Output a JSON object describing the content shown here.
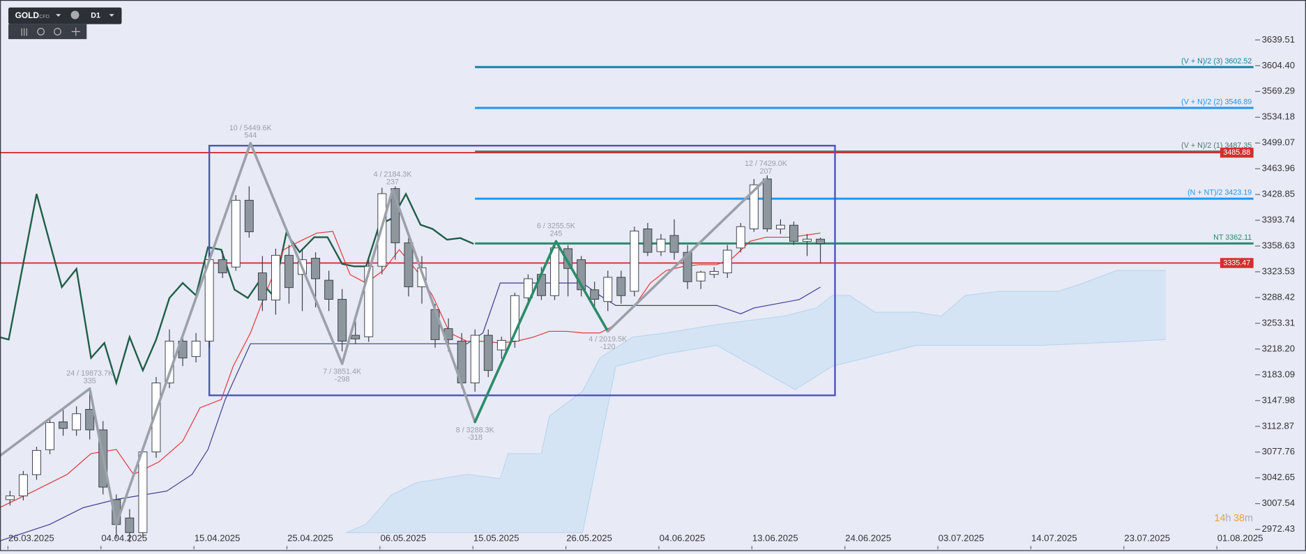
{
  "toolbar": {
    "symbol": "GOLD",
    "market": "CFD",
    "timeframe": "D1"
  },
  "timer": [
    "14",
    "h",
    "38",
    "m"
  ],
  "chart_data": {
    "type": "candlestick",
    "background": "#e8eaf6",
    "xlim": [
      -0.75,
      93.6
    ],
    "ylim": [
      2945.2,
      3693.96
    ],
    "xticks": [
      {
        "value": 1.6,
        "label": "26.03.2025"
      },
      {
        "value": 8.6,
        "label": "04.04.2025"
      },
      {
        "value": 15.6,
        "label": "15.04.2025"
      },
      {
        "value": 22.6,
        "label": "25.04.2025"
      },
      {
        "value": 29.6,
        "label": "06.05.2025"
      },
      {
        "value": 36.6,
        "label": "15.05.2025"
      },
      {
        "value": 43.6,
        "label": "26.05.2025"
      },
      {
        "value": 50.6,
        "label": "04.06.2025"
      },
      {
        "value": 57.6,
        "label": "13.06.2025"
      },
      {
        "value": 64.6,
        "label": "24.06.2025"
      },
      {
        "value": 71.6,
        "label": "03.07.2025"
      },
      {
        "value": 78.6,
        "label": "14.07.2025"
      },
      {
        "value": 85.6,
        "label": "23.07.2025"
      },
      {
        "value": 92.6,
        "label": "01.08.2025"
      }
    ],
    "yticks": [
      3639.51,
      {
        "value": 3604.4,
        "label": "3604.40"
      },
      3569.29,
      3534.18,
      3499.07,
      3463.96,
      3428.85,
      3393.74,
      3358.63,
      3323.53,
      3288.42,
      3253.31,
      {
        "value": 3218.2,
        "label": "3218.20"
      },
      3183.09,
      3147.98,
      3112.87,
      3077.76,
      3042.65,
      3007.54,
      2972.43
    ],
    "up_color": "#ffffff",
    "down_color": "#8e969e",
    "candle_edge": "#3a3f45",
    "open": [
      3013,
      3018,
      3047,
      3081,
      3119,
      3108,
      3136,
      3108,
      3013,
      2988,
      2968,
      3078,
      3172,
      3229,
      3208,
      3229,
      3340,
      3330,
      3421,
      3322,
      3285,
      3346,
      3320,
      3342,
      3312,
      3286,
      3237,
      3235,
      3331,
      3437,
      3363,
      3303,
      3272,
      3246,
      3229,
      3172,
      3237,
      3217,
      3229,
      3288,
      3320,
      3291,
      3355,
      3340,
      3299,
      3283,
      3316,
      3297,
      3382,
      3351,
      3373,
      3350,
      3311,
      3320,
      3322,
      3356,
      3382,
      3450,
      3382,
      3387,
      3365,
      3368
    ],
    "high": [
      3025,
      3052,
      3085,
      3125,
      3135,
      3140,
      3165,
      3120,
      3020,
      3000,
      3085,
      3180,
      3245,
      3240,
      3240,
      3350,
      3352,
      3428,
      3440,
      3345,
      3355,
      3360,
      3355,
      3350,
      3325,
      3300,
      3260,
      3340,
      3438,
      3440,
      3370,
      3345,
      3280,
      3260,
      3240,
      3245,
      3245,
      3235,
      3295,
      3320,
      3330,
      3362,
      3360,
      3345,
      3310,
      3325,
      3325,
      3385,
      3390,
      3375,
      3395,
      3360,
      3325,
      3330,
      3360,
      3390,
      3450,
      3455,
      3395,
      3392,
      3375,
      3370
    ],
    "low": [
      3005,
      3012,
      3040,
      3075,
      3100,
      3100,
      3095,
      3020,
      2960,
      2955,
      2960,
      3070,
      3165,
      3195,
      3200,
      3220,
      3315,
      3325,
      3370,
      3270,
      3265,
      3280,
      3270,
      3275,
      3270,
      3215,
      3225,
      3228,
      3320,
      3340,
      3290,
      3280,
      3220,
      3215,
      3165,
      3160,
      3180,
      3205,
      3220,
      3280,
      3285,
      3285,
      3290,
      3290,
      3275,
      3270,
      3280,
      3290,
      3345,
      3345,
      3340,
      3300,
      3300,
      3315,
      3315,
      3350,
      3378,
      3378,
      3375,
      3360,
      3345,
      3335
    ],
    "close": [
      3018,
      3047,
      3080,
      3118,
      3110,
      3130,
      3108,
      3030,
      2979,
      2968,
      3078,
      3172,
      3229,
      3206,
      3229,
      3340,
      3322,
      3421,
      3378,
      3285,
      3346,
      3302,
      3340,
      3314,
      3286,
      3229,
      3232,
      3331,
      3430,
      3363,
      3303,
      3329,
      3231,
      3231,
      3172,
      3237,
      3189,
      3230,
      3291,
      3314,
      3291,
      3356,
      3328,
      3299,
      3286,
      3316,
      3291,
      3379,
      3350,
      3368,
      3350,
      3310,
      3323,
      3324,
      3353,
      3385,
      3442,
      3382,
      3387,
      3365,
      3368,
      3362
    ],
    "cloud": {
      "color": "#cfe2f5",
      "edge": "#b9d6ee",
      "upper": {
        "x": [
          25.3,
          26.8,
          28.7,
          30.6,
          34.4,
          36.9,
          37.5,
          40.0,
          40.6,
          43.1,
          44.4,
          46.9,
          49.4,
          53.2,
          55.7,
          58.2,
          60.7,
          61.9,
          63.2,
          65.1,
          68.2,
          70.1,
          71.9,
          74.5,
          78.9,
          80.8,
          83.3,
          87.0
        ],
        "values": [
          2967.9,
          2979.3,
          3019.0,
          3036.0,
          3047.3,
          3041.6,
          3075.7,
          3075.7,
          3126.7,
          3160.7,
          3206.1,
          3234.5,
          3240.2,
          3251.5,
          3257.2,
          3262.9,
          3274.2,
          3291.2,
          3291.2,
          3268.5,
          3268.5,
          3262.9,
          3291.2,
          3296.9,
          3296.9,
          3308.2,
          3325.3,
          3325.3
        ]
      },
      "lower": {
        "x": [
          25.3,
          43.1,
          45.6,
          49.4,
          53.2,
          59.1,
          61.9,
          68.2,
          77.6,
          84.5,
          87.0
        ],
        "values": [
          2967.9,
          2967.9,
          3194.8,
          3211.8,
          3223.2,
          3163.0,
          3194.8,
          3223.2,
          3223.2,
          3228.8,
          3231.1
        ]
      }
    },
    "overlays": [
      {
        "color": "#1e5e45",
        "x": [
          -0.8,
          -0.1,
          2.0,
          3.9,
          5.0,
          6.1,
          7.1,
          8.0,
          9.0,
          10.0,
          11.0,
          12.0,
          13.0,
          14.0,
          14.9,
          15.9,
          16.9,
          17.9,
          18.8,
          19.8,
          20.8,
          21.8,
          22.9,
          23.9,
          25.0,
          25.9,
          26.8,
          27.8,
          28.8,
          29.8,
          30.9,
          31.8,
          32.9,
          33.9,
          34.9
        ],
        "values": [
          3234.5,
          3231.1,
          3429.6,
          3302.6,
          3327.5,
          3206.1,
          3226.5,
          3172.1,
          3234.5,
          3189.1,
          3231.1,
          3287.8,
          3308.2,
          3291.2,
          3357.0,
          3353.6,
          3299.2,
          3287.8,
          3311.6,
          3291.2,
          3376.3,
          3350.2,
          3370.6,
          3370.6,
          3334.3,
          3330.9,
          3330.9,
          3387.6,
          3396.7,
          3429.6,
          3387.6,
          3382.0,
          3367.3,
          3369.5,
          3361.6
        ]
      },
      {
        "color": "#e0393a",
        "x": [
          -0.8,
          1.8,
          4.3,
          6.1,
          8.0,
          9.3,
          11.2,
          13.0,
          14.3,
          15.9,
          16.8,
          18.1,
          19.3,
          20.6,
          21.8,
          23.1,
          24.3,
          25.6,
          26.8,
          28.1,
          29.3,
          30.6,
          31.8,
          33.1,
          34.4,
          35.6,
          36.9,
          38.1,
          39.4,
          40.6,
          41.9,
          43.1,
          44.4,
          45.6,
          46.9,
          48.2,
          49.4,
          50.7,
          51.9,
          53.2,
          54.4,
          55.7,
          56.9,
          58.8,
          61.0
        ],
        "values": [
          3001.9,
          3024.6,
          3047.3,
          3075.7,
          3081.3,
          3047.3,
          3064.3,
          3092.7,
          3138.1,
          3149.4,
          3194.8,
          3240.2,
          3296.9,
          3353.6,
          3365.0,
          3376.3,
          3378.6,
          3319.6,
          3308.2,
          3325.3,
          3353.6,
          3325.3,
          3291.2,
          3240.2,
          3228.8,
          3228.8,
          3226.5,
          3228.8,
          3234.5,
          3242.4,
          3242.4,
          3240.2,
          3240.2,
          3251.5,
          3274.2,
          3308.2,
          3325.3,
          3330.9,
          3333.2,
          3333.2,
          3342.3,
          3365.0,
          3370.6,
          3370.6,
          3376.3
        ]
      },
      {
        "color": "#3d3d8f",
        "x": [
          -0.8,
          3.0,
          5.5,
          8.0,
          11.8,
          13.7,
          14.9,
          16.2,
          18.1,
          34.4,
          35.6,
          36.9,
          43.1,
          44.4,
          45.6,
          53.2,
          55.0,
          56.0,
          59.4,
          61.0
        ],
        "values": [
          2956.5,
          2979.3,
          3001.9,
          3013.3,
          3024.6,
          3047.3,
          3081.3,
          3149.4,
          3225.4,
          3225.4,
          3240.2,
          3308.2,
          3308.2,
          3291.2,
          3277.6,
          3277.6,
          3266.2,
          3274.2,
          3285.6,
          3302.6
        ]
      }
    ],
    "box": {
      "color": "#4a55b5",
      "x": [
        15.0,
        62.1
      ],
      "y": [
        3155.1,
        3495.4
      ]
    },
    "levels": [
      {
        "value": 3602.52,
        "color": "#1b7fa6",
        "from": 35.0,
        "label": "(V + N)/2 (3) 3602.52"
      },
      {
        "value": 3546.89,
        "color": "#2196f3",
        "from": 35.0,
        "label": "(V + N)/2 (2) 3546.89"
      },
      {
        "value": 3487.35,
        "color": "#4d7b68",
        "from": 35.0,
        "label": "(V + N)/2 (1) 3487.35"
      },
      {
        "value": 3423.19,
        "color": "#2196f3",
        "from": 35.0,
        "label": "(N + NT)/2 3423.19"
      },
      {
        "value": 3362.11,
        "color": "#2a8b68",
        "from": 35.0,
        "label": "NT 3362.11"
      },
      {
        "value": 3485.88,
        "color": "#d32f2f",
        "boxed": true
      },
      {
        "value": 3335.47,
        "color": "#d32f2f",
        "boxed": true
      }
    ],
    "zigzag": {
      "x": [
        -0.8,
        6.0,
        8.0,
        18.1,
        25.0,
        28.8,
        35.0,
        41.1,
        45.0,
        56.9
      ],
      "values": [
        3072.2,
        3164.2,
        2979.3,
        3498.8,
        3198.2,
        3435.3,
        3118.8,
        3365.0,
        3242.4,
        3450.0
      ],
      "segment_colors": [
        "#9aa1a8",
        "#9aa1a8",
        "#9aa1a8",
        "#9aa1a8",
        "#9aa1a8",
        "#9aa1a8",
        "#2a8b68",
        "#2a8b68",
        "#9aa1a8"
      ],
      "labels": [
        null,
        "24 / 19873.7K",
        null,
        "10 / 5449.6K",
        "7 / 3851.4K",
        "4 / 2184.3K",
        "8 / 3288.3K",
        "6 / 3255.5K",
        "4 / 2019.5K",
        "12 / 7429.0K"
      ],
      "sublabels": [
        null,
        "335",
        null,
        "544",
        "-298",
        "237",
        "-318",
        "245",
        "-120",
        "207"
      ]
    }
  }
}
